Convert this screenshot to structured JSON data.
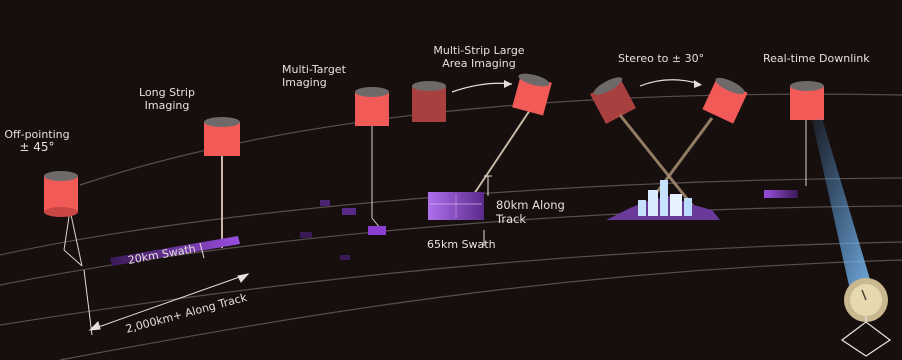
{
  "modes": {
    "off_pointing": {
      "line1": "Off-pointing",
      "line2": "± 45°"
    },
    "long_strip": {
      "line1": "Long Strip",
      "line2": "Imaging"
    },
    "multi_target": {
      "line1": "Multi-Target",
      "line2": "Imaging"
    },
    "multi_strip": {
      "line1": "Multi-Strip Large",
      "line2": "Area Imaging"
    },
    "stereo": {
      "label": "Stereo to ± 30°"
    },
    "downlink": {
      "label": "Real-time Downlink"
    }
  },
  "annotations": {
    "swath_20": "20km Swath",
    "along_track_2000": "2,000km+ Along Track",
    "swath_65": "65km Swath",
    "along_80_line1": "80km Along",
    "along_80_line2": "Track"
  },
  "colors": {
    "background": "#160f0e",
    "satellite_body": "#f25a57",
    "satellite_body_dark": "#a8403f",
    "satellite_top": "#6e6a6a",
    "swath": "#8a3fd0",
    "swath_light": "#c49be8",
    "downlink_beam": "#5aa7f0",
    "orbit_line": "#cfc9c4"
  },
  "icons": {
    "satellite": "satellite-icon",
    "ground_station": "ground-station-dish-icon"
  }
}
